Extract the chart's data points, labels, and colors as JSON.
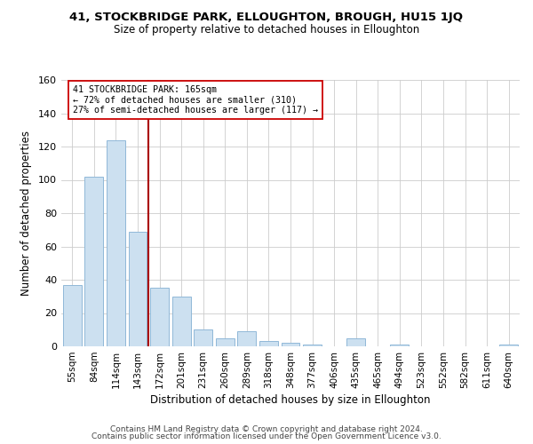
{
  "title1": "41, STOCKBRIDGE PARK, ELLOUGHTON, BROUGH, HU15 1JQ",
  "title2": "Size of property relative to detached houses in Elloughton",
  "xlabel": "Distribution of detached houses by size in Elloughton",
  "ylabel": "Number of detached properties",
  "bar_labels": [
    "55sqm",
    "84sqm",
    "114sqm",
    "143sqm",
    "172sqm",
    "201sqm",
    "231sqm",
    "260sqm",
    "289sqm",
    "318sqm",
    "348sqm",
    "377sqm",
    "406sqm",
    "435sqm",
    "465sqm",
    "494sqm",
    "523sqm",
    "552sqm",
    "582sqm",
    "611sqm",
    "640sqm"
  ],
  "bar_values": [
    37,
    102,
    124,
    69,
    35,
    30,
    10,
    5,
    9,
    3,
    2,
    1,
    0,
    5,
    0,
    1,
    0,
    0,
    0,
    0,
    1
  ],
  "bar_color": "#cce0f0",
  "bar_edge_color": "#90b8d8",
  "vline_index": 4,
  "vline_color": "#aa0000",
  "annotation_title": "41 STOCKBRIDGE PARK: 165sqm",
  "annotation_line1": "← 72% of detached houses are smaller (310)",
  "annotation_line2": "27% of semi-detached houses are larger (117) →",
  "annotation_box_color": "#ffffff",
  "annotation_box_edge": "#cc0000",
  "ylim": [
    0,
    160
  ],
  "yticks": [
    0,
    20,
    40,
    60,
    80,
    100,
    120,
    140,
    160
  ],
  "footer1": "Contains HM Land Registry data © Crown copyright and database right 2024.",
  "footer2": "Contains public sector information licensed under the Open Government Licence v3.0.",
  "background_color": "#ffffff",
  "grid_color": "#cccccc"
}
